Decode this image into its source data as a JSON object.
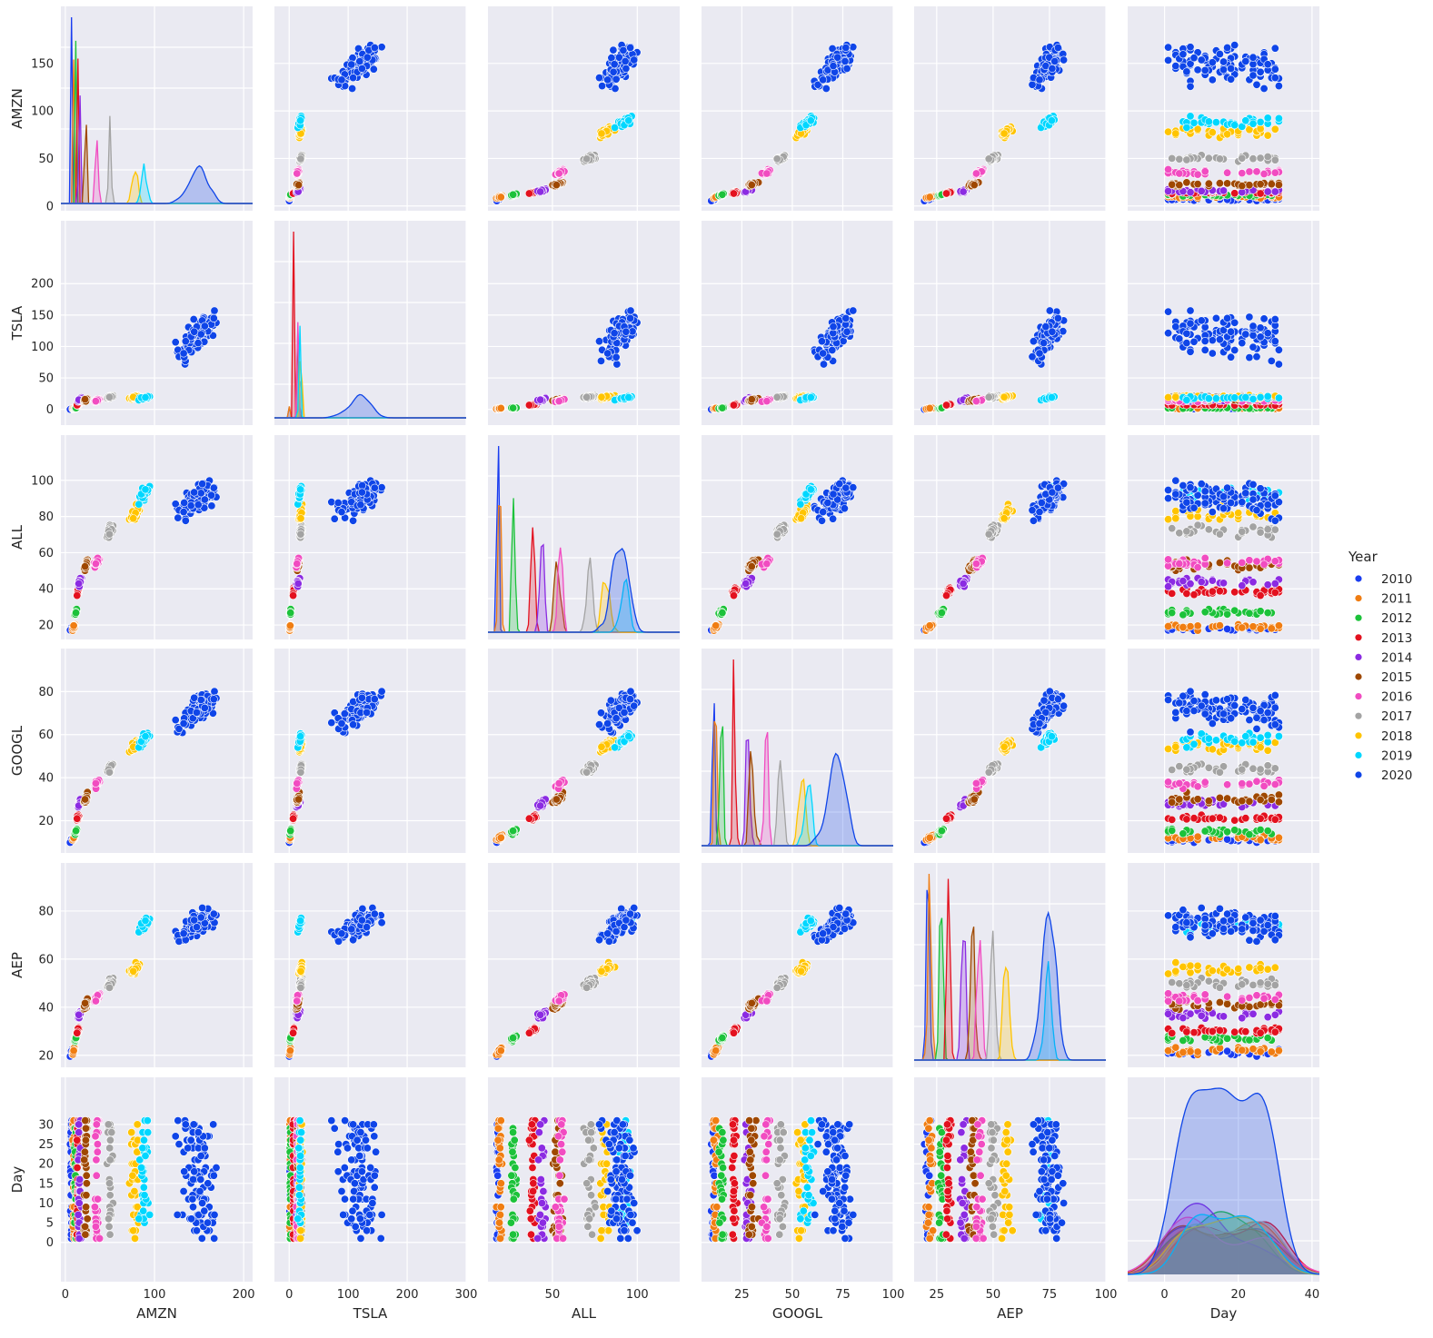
{
  "chart_data": {
    "type": "pairplot",
    "title": "",
    "variables": [
      "AMZN",
      "TSLA",
      "ALL",
      "GOOGL",
      "AEP",
      "Day"
    ],
    "hue": "Year",
    "legend": {
      "title": "Year",
      "placement": "right",
      "entries": [
        {
          "label": "2010",
          "color": "#1a3df0"
        },
        {
          "label": "2011",
          "color": "#f07d12"
        },
        {
          "label": "2012",
          "color": "#1cc23a"
        },
        {
          "label": "2013",
          "color": "#e3111f"
        },
        {
          "label": "2014",
          "color": "#8b2be2"
        },
        {
          "label": "2015",
          "color": "#9f4800"
        },
        {
          "label": "2016",
          "color": "#f14cc1"
        },
        {
          "label": "2017",
          "color": "#a3a3a3"
        },
        {
          "label": "2018",
          "color": "#ffc400"
        },
        {
          "label": "2019",
          "color": "#00d7ff"
        },
        {
          "label": "2020",
          "color": "#0f45e8"
        }
      ]
    },
    "axes": {
      "AMZN": {
        "label": "AMZN",
        "range": [
          -5,
          210
        ],
        "ticks": [
          0,
          50,
          100,
          150
        ],
        "xticks": [
          0,
          100,
          200
        ]
      },
      "TSLA": {
        "label": "TSLA",
        "range": [
          -25,
          300
        ],
        "ticks": [
          0,
          50,
          100,
          150,
          200
        ],
        "xticks": [
          0,
          100,
          200,
          300
        ]
      },
      "ALL": {
        "label": "ALL",
        "range": [
          12,
          125
        ],
        "ticks": [
          20,
          40,
          60,
          80,
          100
        ],
        "xticks": [
          50,
          100
        ]
      },
      "GOOGL": {
        "label": "GOOGL",
        "range": [
          5,
          100
        ],
        "ticks": [
          20,
          40,
          60,
          80
        ],
        "xticks": [
          25,
          50,
          75,
          100
        ]
      },
      "AEP": {
        "label": "AEP",
        "range": [
          15,
          100
        ],
        "ticks": [
          20,
          40,
          60,
          80
        ],
        "xticks": [
          25,
          50,
          75,
          100
        ]
      },
      "Day": {
        "label": "Day",
        "range": [
          -10,
          42
        ],
        "ticks": [
          0,
          5,
          10,
          15,
          20,
          25,
          30
        ],
        "xticks": [
          0,
          20,
          40
        ]
      }
    },
    "yearly_mean_values": {
      "years": [
        2010,
        2011,
        2012,
        2013,
        2014,
        2015,
        2016,
        2017,
        2018,
        2019,
        2020
      ],
      "AMZN": [
        6.5,
        9.5,
        11.5,
        14,
        16,
        23,
        35,
        50,
        78,
        88,
        150
      ],
      "TSLA": [
        1.3,
        1.6,
        2.2,
        7,
        15,
        15,
        14,
        20,
        20,
        18,
        120
      ],
      "ALL": [
        18,
        19,
        27,
        38,
        44,
        53,
        55,
        72,
        82,
        92,
        90
      ],
      "GOOGL": [
        11,
        12,
        15,
        21,
        28,
        30,
        37,
        44,
        55,
        58,
        72
      ],
      "AEP": [
        21,
        22,
        27,
        30,
        37,
        41,
        44,
        50,
        56,
        74,
        75
      ],
      "Day": [
        15.5,
        15.5,
        15.5,
        15.5,
        15.5,
        15.5,
        15.5,
        15.5,
        15.5,
        15.5,
        15.5
      ]
    },
    "grid": true,
    "background": "#eaeaf2"
  }
}
